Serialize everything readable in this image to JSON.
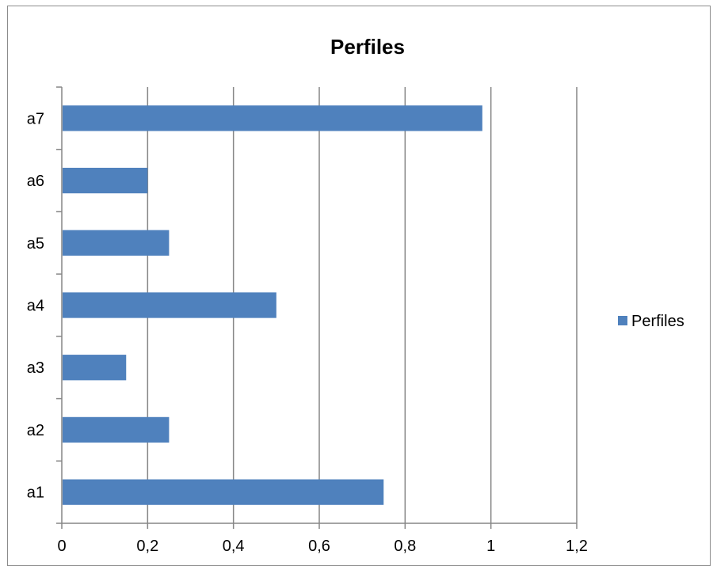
{
  "chart_data": {
    "type": "bar",
    "orientation": "horizontal",
    "title": "Perfiles",
    "categories": [
      "a1",
      "a2",
      "a3",
      "a4",
      "a5",
      "a6",
      "a7"
    ],
    "series": [
      {
        "name": "Perfiles",
        "values": [
          0.75,
          0.25,
          0.15,
          0.5,
          0.25,
          0.2,
          0.98
        ],
        "color": "#4f81bd"
      }
    ],
    "xlim": [
      0,
      1.2
    ],
    "x_ticks": [
      0,
      0.2,
      0.4,
      0.6,
      0.8,
      1,
      1.2
    ],
    "x_tick_labels": [
      "0",
      "0,2",
      "0,4",
      "0,6",
      "0,8",
      "1",
      "1,2"
    ],
    "xlabel": "",
    "ylabel": "",
    "grid": "vertical major gridlines",
    "legend_position": "right"
  },
  "colors": {
    "bar": "#4f81bd",
    "gridline": "#868686",
    "axis": "#868686",
    "text": "#000000"
  }
}
